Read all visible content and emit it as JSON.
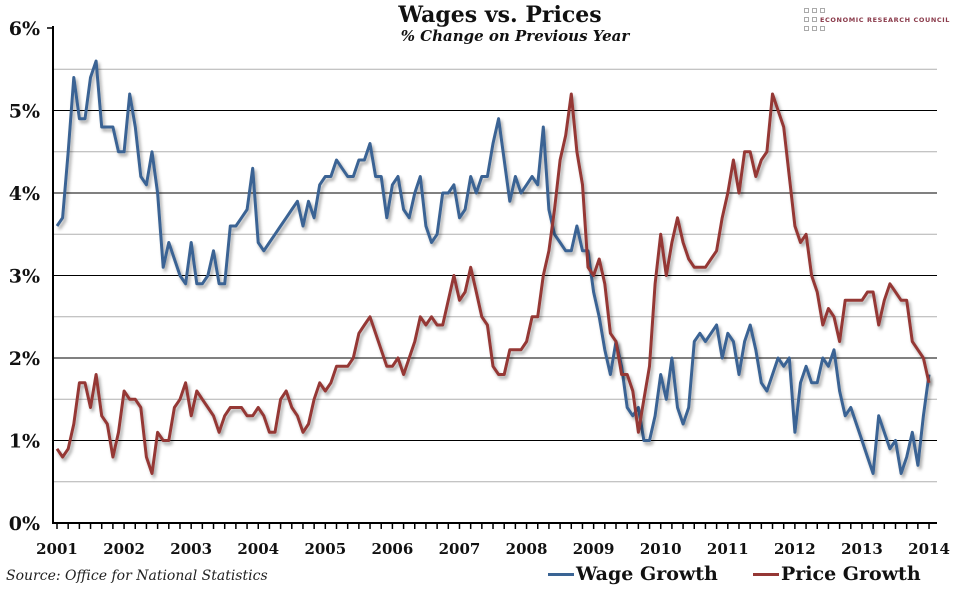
{
  "chart_data": {
    "type": "line",
    "title": "Wages vs. Prices",
    "subtitle": "% Change on Previous Year",
    "source": "Source: Office for National Statistics",
    "xlabel": "",
    "ylabel": "",
    "ylim": [
      0,
      6
    ],
    "y_ticks": [
      "0%",
      "1%",
      "2%",
      "3%",
      "4%",
      "5%",
      "6%"
    ],
    "x_ticks": [
      "2001",
      "2002",
      "2003",
      "2004",
      "2005",
      "2006",
      "2007",
      "2008",
      "2009",
      "2010",
      "2011",
      "2012",
      "2013",
      "2014"
    ],
    "x_start": "Jan 2001",
    "x_frequency": "monthly",
    "grid": true,
    "legend": "bottom-right",
    "series": [
      {
        "name": "Wage Growth",
        "color": "#3a6494",
        "values": [
          3.6,
          3.7,
          4.5,
          5.4,
          4.9,
          4.9,
          5.4,
          5.6,
          4.8,
          4.8,
          4.8,
          4.5,
          4.5,
          5.2,
          4.8,
          4.2,
          4.1,
          4.5,
          4.0,
          3.1,
          3.4,
          3.2,
          3.0,
          2.9,
          3.4,
          2.9,
          2.9,
          3.0,
          3.3,
          2.9,
          2.9,
          3.6,
          3.6,
          3.7,
          3.8,
          4.3,
          3.4,
          3.3,
          3.4,
          3.5,
          3.6,
          3.7,
          3.8,
          3.9,
          3.6,
          3.9,
          3.7,
          4.1,
          4.2,
          4.2,
          4.4,
          4.3,
          4.2,
          4.2,
          4.4,
          4.4,
          4.6,
          4.2,
          4.2,
          3.7,
          4.1,
          4.2,
          3.8,
          3.7,
          4.0,
          4.2,
          3.6,
          3.4,
          3.5,
          4.0,
          4.0,
          4.1,
          3.7,
          3.8,
          4.2,
          4.0,
          4.2,
          4.2,
          4.6,
          4.9,
          4.4,
          3.9,
          4.2,
          4.0,
          4.1,
          4.2,
          4.1,
          4.8,
          3.8,
          3.5,
          3.4,
          3.3,
          3.3,
          3.6,
          3.3,
          3.3,
          2.8,
          2.5,
          2.1,
          1.8,
          2.2,
          1.9,
          1.4,
          1.3,
          1.4,
          1.0,
          1.0,
          1.3,
          1.8,
          1.5,
          2.0,
          1.4,
          1.2,
          1.4,
          2.2,
          2.3,
          2.2,
          2.3,
          2.4,
          2.0,
          2.3,
          2.2,
          1.8,
          2.2,
          2.4,
          2.1,
          1.7,
          1.6,
          1.8,
          2.0,
          1.9,
          2.0,
          1.1,
          1.7,
          1.9,
          1.7,
          1.7,
          2.0,
          1.9,
          2.1,
          1.6,
          1.3,
          1.4,
          1.2,
          1.0,
          0.8,
          0.6,
          1.3,
          1.1,
          0.9,
          1.0,
          0.6,
          0.8,
          1.1,
          0.7,
          1.3,
          1.8
        ]
      },
      {
        "name": "Price Growth",
        "color": "#953735",
        "values": [
          0.9,
          0.8,
          0.9,
          1.2,
          1.7,
          1.7,
          1.4,
          1.8,
          1.3,
          1.2,
          0.8,
          1.1,
          1.6,
          1.5,
          1.5,
          1.4,
          0.8,
          0.6,
          1.1,
          1.0,
          1.0,
          1.4,
          1.5,
          1.7,
          1.3,
          1.6,
          1.5,
          1.4,
          1.3,
          1.1,
          1.3,
          1.4,
          1.4,
          1.4,
          1.3,
          1.3,
          1.4,
          1.3,
          1.1,
          1.1,
          1.5,
          1.6,
          1.4,
          1.3,
          1.1,
          1.2,
          1.5,
          1.7,
          1.6,
          1.7,
          1.9,
          1.9,
          1.9,
          2.0,
          2.3,
          2.4,
          2.5,
          2.3,
          2.1,
          1.9,
          1.9,
          2.0,
          1.8,
          2.0,
          2.2,
          2.5,
          2.4,
          2.5,
          2.4,
          2.4,
          2.7,
          3.0,
          2.7,
          2.8,
          3.1,
          2.8,
          2.5,
          2.4,
          1.9,
          1.8,
          1.8,
          2.1,
          2.1,
          2.1,
          2.2,
          2.5,
          2.5,
          3.0,
          3.3,
          3.8,
          4.4,
          4.7,
          5.2,
          4.5,
          4.1,
          3.1,
          3.0,
          3.2,
          2.9,
          2.3,
          2.2,
          1.8,
          1.8,
          1.6,
          1.1,
          1.5,
          1.9,
          2.9,
          3.5,
          3.0,
          3.4,
          3.7,
          3.4,
          3.2,
          3.1,
          3.1,
          3.1,
          3.2,
          3.3,
          3.7,
          4.0,
          4.4,
          4.0,
          4.5,
          4.5,
          4.2,
          4.4,
          4.5,
          5.2,
          5.0,
          4.8,
          4.2,
          3.6,
          3.4,
          3.5,
          3.0,
          2.8,
          2.4,
          2.6,
          2.5,
          2.2,
          2.7,
          2.7,
          2.7,
          2.7,
          2.8,
          2.8,
          2.4,
          2.7,
          2.9,
          2.8,
          2.7,
          2.7,
          2.2,
          2.1,
          2.0,
          1.7
        ]
      }
    ]
  },
  "logo": {
    "text": "ECONOMIC RESEARCH COUNCIL"
  }
}
